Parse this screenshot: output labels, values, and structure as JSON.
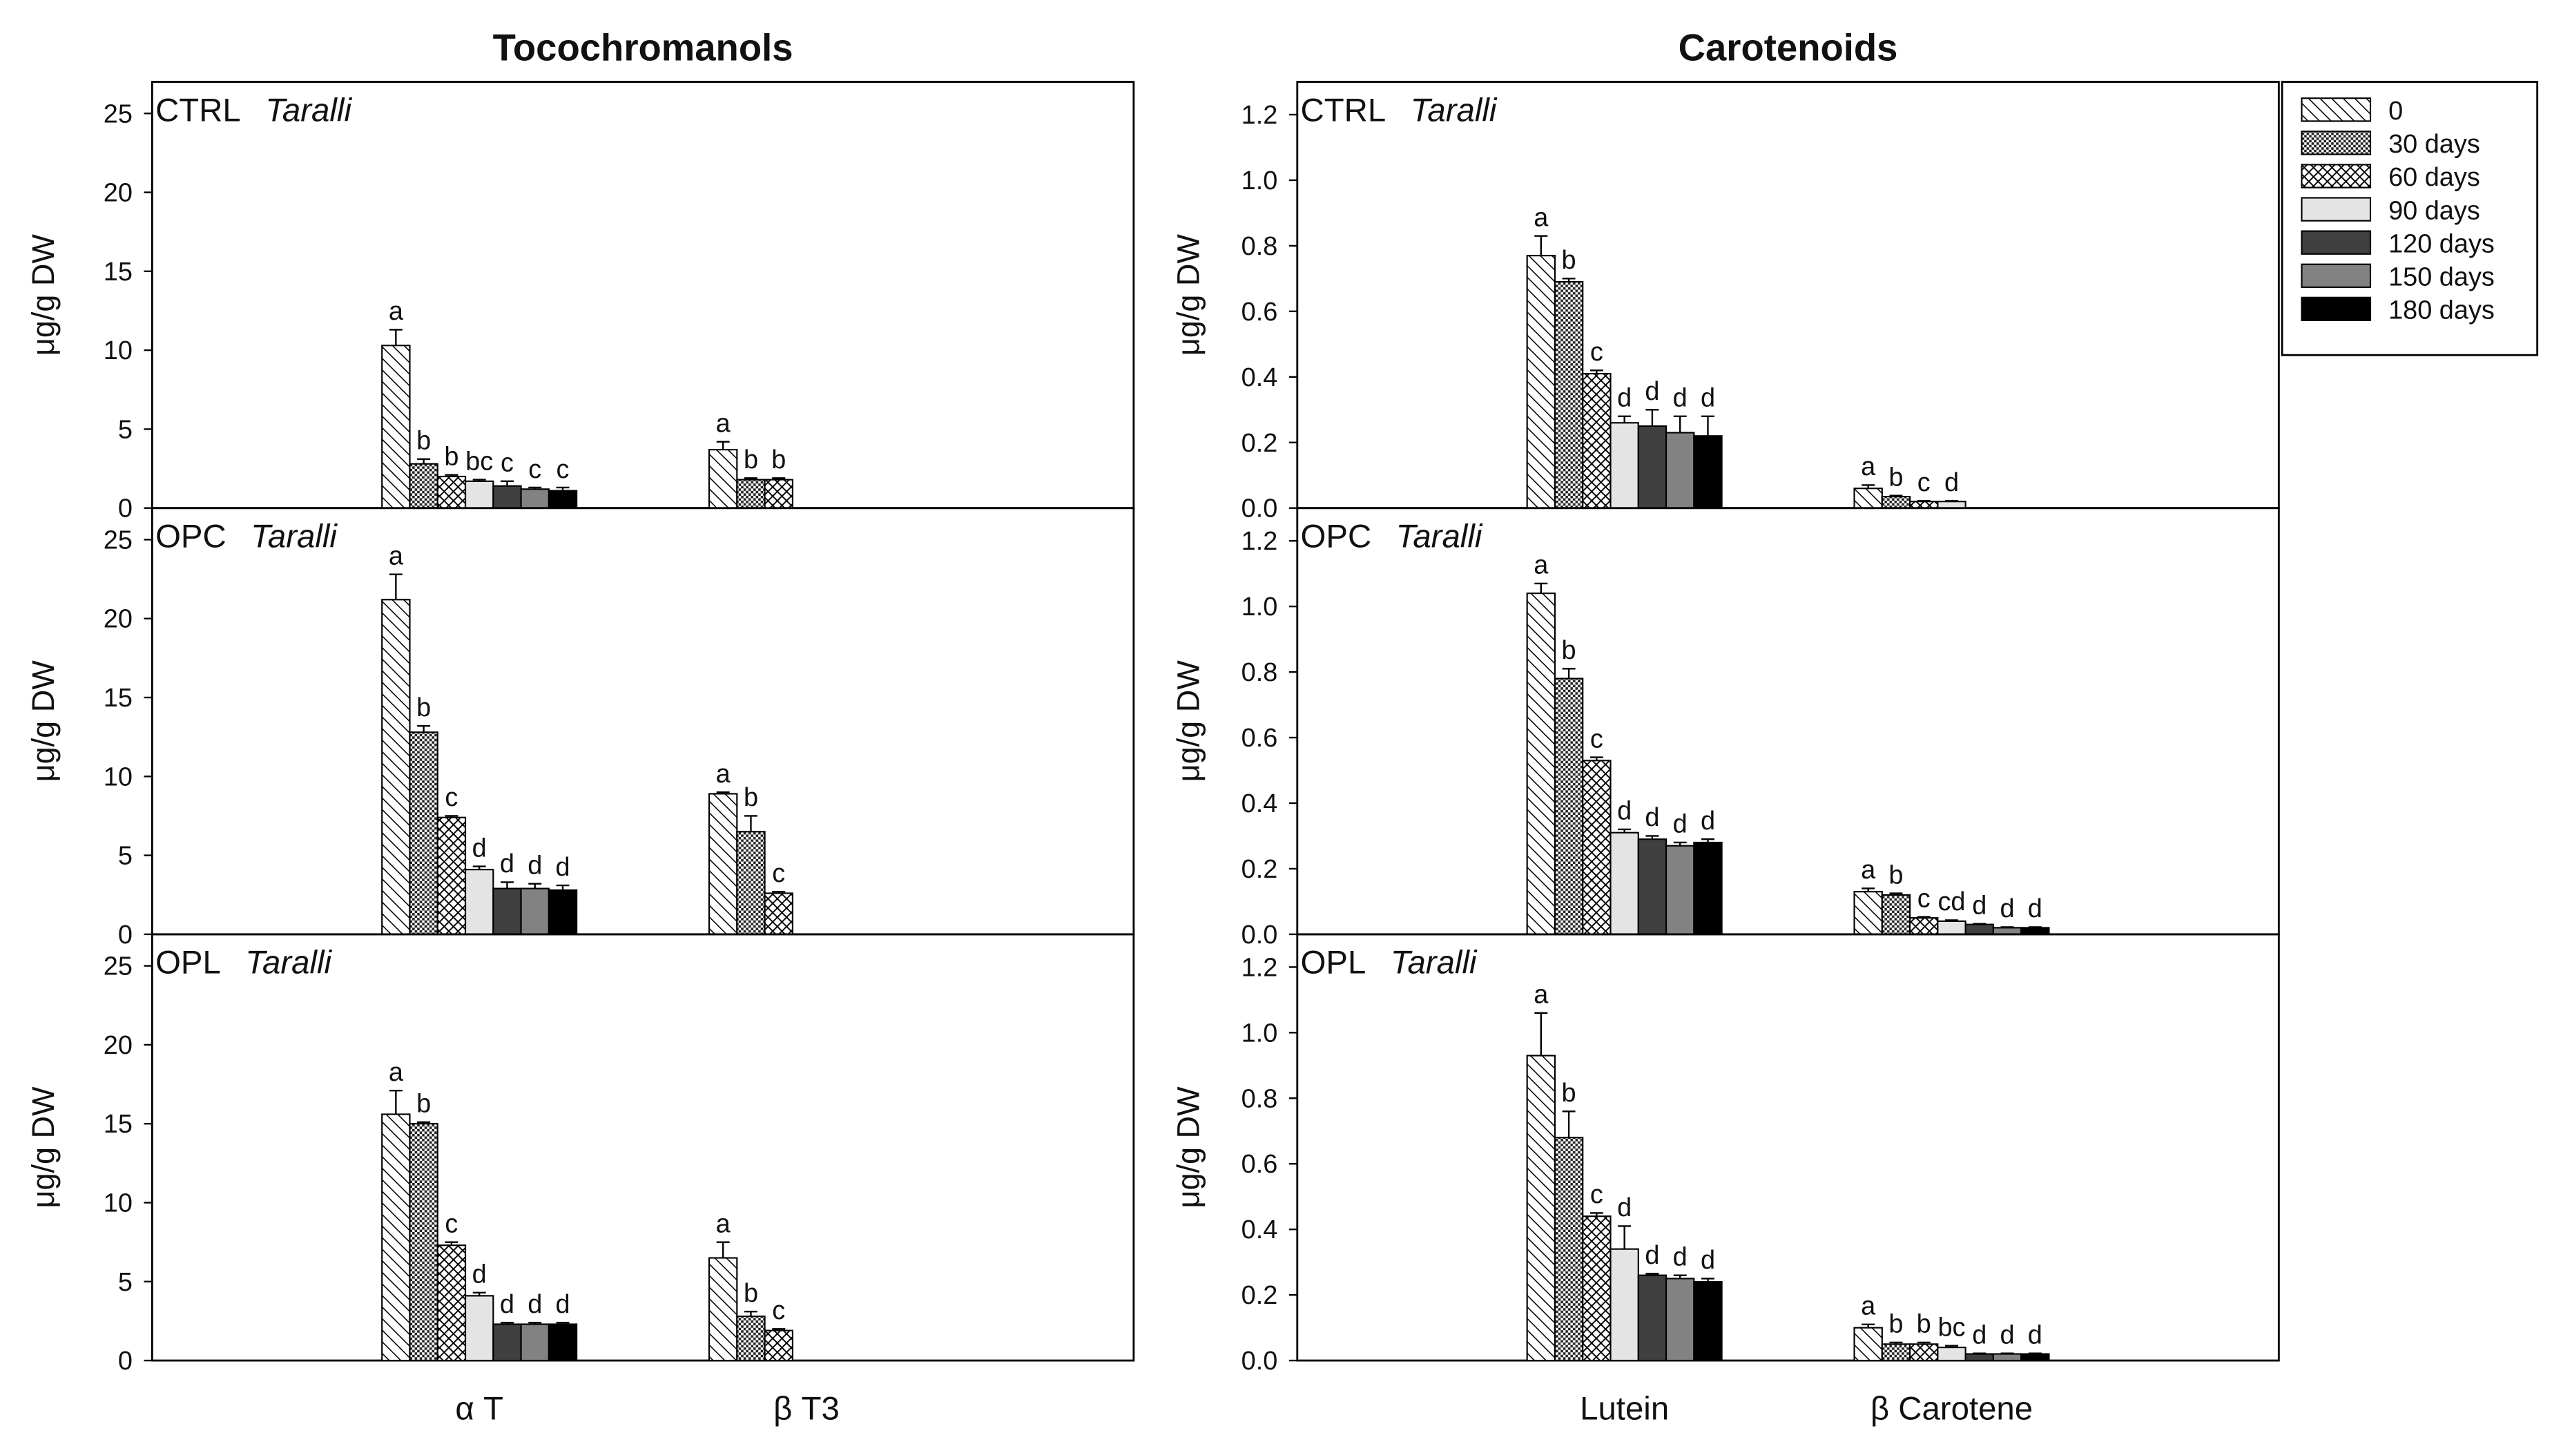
{
  "chart_data": [
    {
      "type": "bar",
      "title": "Tocochromanols",
      "panel_label": "CTRL",
      "panel_sublabel": "Taralli",
      "ylabel": "μg/g DW",
      "categories": [
        null,
        null
      ],
      "ylim": [
        0,
        27
      ],
      "yticks": [
        0,
        5,
        10,
        15,
        20,
        25
      ],
      "series": [
        {
          "values": [
            10.3,
            3.7
          ],
          "errors": [
            1.0,
            0.5
          ],
          "letters": [
            "a",
            "a"
          ]
        },
        {
          "values": [
            2.8,
            1.8
          ],
          "errors": [
            0.3,
            0.1
          ],
          "letters": [
            "b",
            "b"
          ]
        },
        {
          "values": [
            2.0,
            1.8
          ],
          "errors": [
            0.1,
            0.1
          ],
          "letters": [
            "b",
            "b"
          ]
        },
        {
          "values": [
            1.7,
            null
          ],
          "errors": [
            0.1,
            null
          ],
          "letters": [
            "bc",
            null
          ]
        },
        {
          "values": [
            1.4,
            null
          ],
          "errors": [
            0.3,
            null
          ],
          "letters": [
            "c",
            null
          ]
        },
        {
          "values": [
            1.2,
            null
          ],
          "errors": [
            0.1,
            null
          ],
          "letters": [
            "c",
            null
          ]
        },
        {
          "values": [
            1.1,
            null
          ],
          "errors": [
            0.2,
            null
          ],
          "letters": [
            "c",
            null
          ]
        }
      ]
    },
    {
      "type": "bar",
      "panel_label": "OPC",
      "panel_sublabel": "Taralli",
      "ylabel": "μg/g DW",
      "categories": [
        null,
        null
      ],
      "ylim": [
        0,
        27
      ],
      "yticks": [
        0,
        5,
        10,
        15,
        20,
        25
      ],
      "series": [
        {
          "values": [
            21.2,
            8.9
          ],
          "errors": [
            1.6,
            0.1
          ],
          "letters": [
            "a",
            "a"
          ]
        },
        {
          "values": [
            12.8,
            6.5
          ],
          "errors": [
            0.4,
            1.0
          ],
          "letters": [
            "b",
            "b"
          ]
        },
        {
          "values": [
            7.4,
            2.6
          ],
          "errors": [
            0.1,
            0.1
          ],
          "letters": [
            "c",
            "c"
          ]
        },
        {
          "values": [
            4.1,
            null
          ],
          "errors": [
            0.2,
            null
          ],
          "letters": [
            "d",
            null
          ]
        },
        {
          "values": [
            2.9,
            null
          ],
          "errors": [
            0.4,
            null
          ],
          "letters": [
            "d",
            null
          ]
        },
        {
          "values": [
            2.9,
            null
          ],
          "errors": [
            0.3,
            null
          ],
          "letters": [
            "d",
            null
          ]
        },
        {
          "values": [
            2.8,
            null
          ],
          "errors": [
            0.3,
            null
          ],
          "letters": [
            "d",
            null
          ]
        }
      ]
    },
    {
      "type": "bar",
      "panel_label": "OPL",
      "panel_sublabel": "Taralli",
      "ylabel": "μg/g DW",
      "categories": [
        "α T",
        "β T3"
      ],
      "ylim": [
        0,
        27
      ],
      "yticks": [
        0,
        5,
        10,
        15,
        20,
        25
      ],
      "series": [
        {
          "values": [
            15.6,
            6.5
          ],
          "errors": [
            1.5,
            1.0
          ],
          "letters": [
            "a",
            "a"
          ]
        },
        {
          "values": [
            15.0,
            2.8
          ],
          "errors": [
            0.1,
            0.3
          ],
          "letters": [
            "b",
            "b"
          ]
        },
        {
          "values": [
            7.3,
            1.9
          ],
          "errors": [
            0.2,
            0.1
          ],
          "letters": [
            "c",
            "c"
          ]
        },
        {
          "values": [
            4.1,
            null
          ],
          "errors": [
            0.2,
            null
          ],
          "letters": [
            "d",
            null
          ]
        },
        {
          "values": [
            2.3,
            null
          ],
          "errors": [
            0.1,
            null
          ],
          "letters": [
            "d",
            null
          ]
        },
        {
          "values": [
            2.3,
            null
          ],
          "errors": [
            0.1,
            null
          ],
          "letters": [
            "d",
            null
          ]
        },
        {
          "values": [
            2.3,
            null
          ],
          "errors": [
            0.1,
            null
          ],
          "letters": [
            "d",
            null
          ]
        }
      ]
    },
    {
      "type": "bar",
      "title": "Carotenoids",
      "panel_label": "CTRL",
      "panel_sublabel": "Taralli",
      "ylabel": "μg/g DW",
      "categories": [
        null,
        null
      ],
      "ylim": [
        0,
        1.3
      ],
      "yticks": [
        {
          "value": 0,
          "label": "0.0"
        },
        0.2,
        0.4,
        0.6,
        0.8,
        {
          "value": 1,
          "label": "1.0"
        },
        1.2
      ],
      "legend": "upper right outside",
      "series": [
        {
          "name": "0",
          "pattern": "hatch",
          "color": "#000000",
          "values": [
            0.77,
            0.06
          ],
          "errors": [
            0.06,
            0.01
          ],
          "letters": [
            "a",
            "a"
          ]
        },
        {
          "name": "30 days",
          "pattern": "dots",
          "color": "#000000",
          "values": [
            0.69,
            0.035
          ],
          "errors": [
            0.01,
            0.003
          ],
          "letters": [
            "b",
            "b"
          ]
        },
        {
          "name": "60 days",
          "pattern": "cross",
          "color": "#000000",
          "values": [
            0.41,
            0.02
          ],
          "errors": [
            0.01,
            0.002
          ],
          "letters": [
            "c",
            "c"
          ]
        },
        {
          "name": "90 days",
          "pattern": "solid",
          "color": "#e4e4e4",
          "values": [
            0.26,
            0.02
          ],
          "errors": [
            0.02,
            0.002
          ],
          "letters": [
            "d",
            "d"
          ]
        },
        {
          "name": "120 days",
          "pattern": "solid",
          "color": "#404040",
          "values": [
            0.25,
            null
          ],
          "errors": [
            0.05,
            null
          ],
          "letters": [
            "d",
            null
          ]
        },
        {
          "name": "150 days",
          "pattern": "solid",
          "color": "#828282",
          "values": [
            0.23,
            null
          ],
          "errors": [
            0.05,
            null
          ],
          "letters": [
            "d",
            null
          ]
        },
        {
          "name": "180 days",
          "pattern": "solid",
          "color": "#000000",
          "values": [
            0.22,
            null
          ],
          "errors": [
            0.06,
            null
          ],
          "letters": [
            "d",
            null
          ]
        }
      ]
    },
    {
      "type": "bar",
      "panel_label": "OPC",
      "panel_sublabel": "Taralli",
      "ylabel": "μg/g DW",
      "categories": [
        null,
        null
      ],
      "ylim": [
        0,
        1.3
      ],
      "yticks": [
        {
          "value": 0,
          "label": "0.0"
        },
        0.2,
        0.4,
        0.6,
        0.8,
        {
          "value": 1,
          "label": "1.0"
        },
        1.2
      ],
      "series": [
        {
          "values": [
            1.04,
            0.13
          ],
          "errors": [
            0.03,
            0.01
          ],
          "letters": [
            "a",
            "a"
          ]
        },
        {
          "values": [
            0.78,
            0.12
          ],
          "errors": [
            0.03,
            0.005
          ],
          "letters": [
            "b",
            "b"
          ]
        },
        {
          "values": [
            0.53,
            0.05
          ],
          "errors": [
            0.01,
            0.003
          ],
          "letters": [
            "c",
            "c"
          ]
        },
        {
          "values": [
            0.31,
            0.04
          ],
          "errors": [
            0.01,
            0.003
          ],
          "letters": [
            "d",
            "cd"
          ]
        },
        {
          "values": [
            0.29,
            0.03
          ],
          "errors": [
            0.01,
            0.002
          ],
          "letters": [
            "d",
            "d"
          ]
        },
        {
          "values": [
            0.27,
            0.02
          ],
          "errors": [
            0.01,
            0.002
          ],
          "letters": [
            "d",
            "d"
          ]
        },
        {
          "values": [
            0.28,
            0.02
          ],
          "errors": [
            0.01,
            0.002
          ],
          "letters": [
            "d",
            "d"
          ]
        }
      ]
    },
    {
      "type": "bar",
      "panel_label": "OPL",
      "panel_sublabel": "Taralli",
      "ylabel": "μg/g DW",
      "categories": [
        "Lutein",
        "β Carotene"
      ],
      "ylim": [
        0,
        1.3
      ],
      "yticks": [
        {
          "value": 0,
          "label": "0.0"
        },
        0.2,
        0.4,
        0.6,
        0.8,
        {
          "value": 1,
          "label": "1.0"
        },
        1.2
      ],
      "series": [
        {
          "values": [
            0.93,
            0.1
          ],
          "errors": [
            0.13,
            0.01
          ],
          "letters": [
            "a",
            "a"
          ]
        },
        {
          "values": [
            0.68,
            0.05
          ],
          "errors": [
            0.08,
            0.005
          ],
          "letters": [
            "b",
            "b"
          ]
        },
        {
          "values": [
            0.44,
            0.05
          ],
          "errors": [
            0.01,
            0.005
          ],
          "letters": [
            "c",
            "b"
          ]
        },
        {
          "values": [
            0.34,
            0.04
          ],
          "errors": [
            0.07,
            0.005
          ],
          "letters": [
            "d",
            "bc"
          ]
        },
        {
          "values": [
            0.26,
            0.02
          ],
          "errors": [
            0.005,
            0.002
          ],
          "letters": [
            "d",
            "d"
          ]
        },
        {
          "values": [
            0.25,
            0.02
          ],
          "errors": [
            0.01,
            0.002
          ],
          "letters": [
            "d",
            "d"
          ]
        },
        {
          "values": [
            0.24,
            0.02
          ],
          "errors": [
            0.01,
            0.002
          ],
          "letters": [
            "d",
            "d"
          ]
        }
      ]
    }
  ]
}
